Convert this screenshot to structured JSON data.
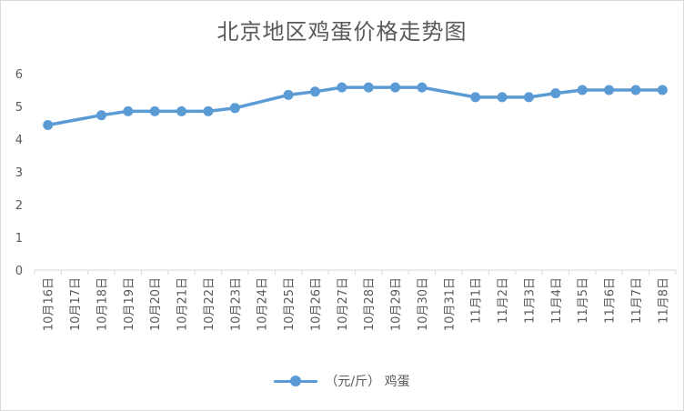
{
  "chart_data": {
    "type": "line",
    "title": "北京地区鸡蛋价格走势图",
    "categories": [
      "10月16日",
      "10月17日",
      "10月18日",
      "10月19日",
      "10月20日",
      "10月21日",
      "10月22日",
      "10月23日",
      "10月24日",
      "10月25日",
      "10月26日",
      "10月27日",
      "10月28日",
      "10月29日",
      "10月30日",
      "10月31日",
      "11月1日",
      "11月2日",
      "11月3日",
      "11月4日",
      "11月5日",
      "11月6日",
      "11月7日",
      "11月8日"
    ],
    "series": [
      {
        "name": "（元/斤） 鸡蛋",
        "color": "#5b9bd5",
        "values": [
          4.43,
          null,
          4.73,
          4.85,
          4.85,
          4.85,
          4.85,
          4.95,
          null,
          5.35,
          5.45,
          5.58,
          5.58,
          5.58,
          5.58,
          null,
          5.28,
          5.28,
          5.28,
          5.4,
          5.5,
          5.5,
          5.5,
          5.5
        ]
      }
    ],
    "ylim": [
      0,
      6
    ],
    "yticks": [
      0,
      1,
      2,
      3,
      4,
      5,
      6
    ],
    "grid": false,
    "legend": "bottom",
    "xlabel": "",
    "ylabel": ""
  }
}
